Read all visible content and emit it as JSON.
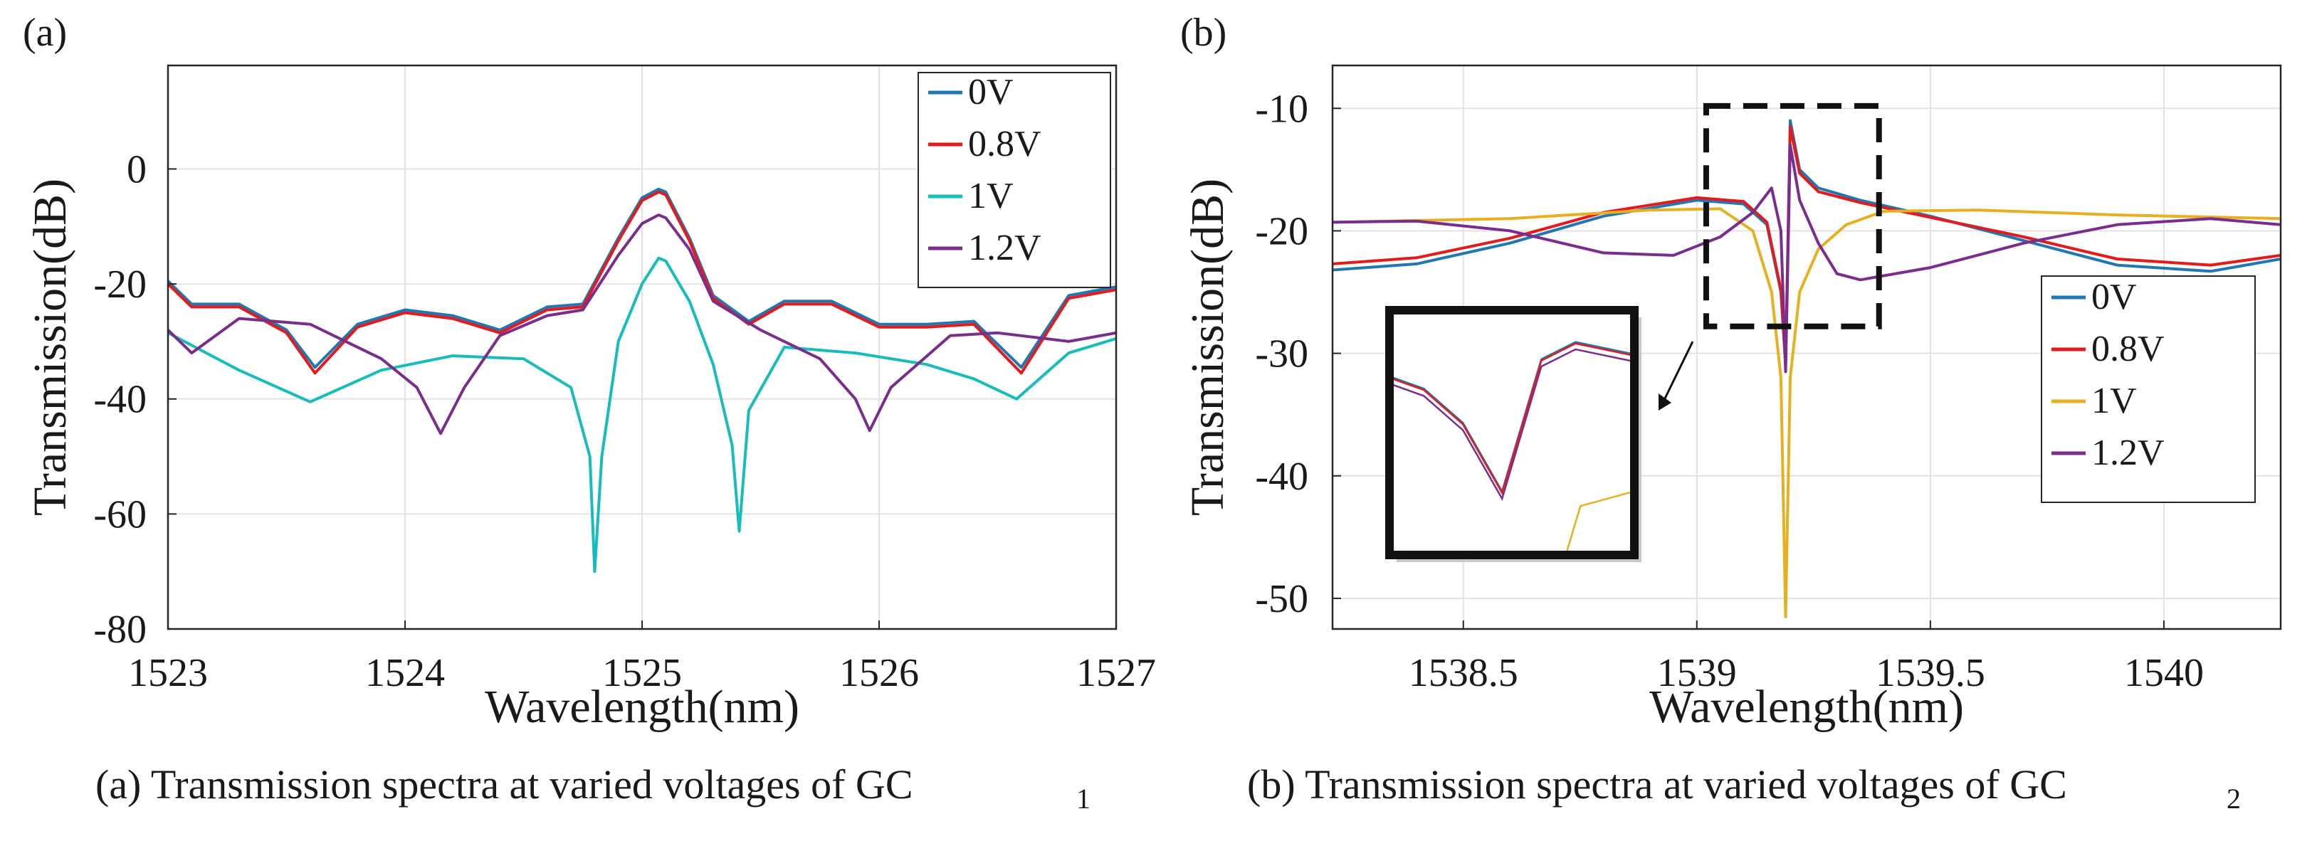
{
  "chart_data": [
    {
      "type": "line",
      "panel_label": "(a)",
      "caption": "(a) Transmission spectra at varied voltages of GC",
      "caption_subscript": "1",
      "xlabel": "Wavelength(nm)",
      "ylabel": "Transmission(dB)",
      "xlim": [
        1523,
        1527
      ],
      "ylim": [
        -80,
        18
      ],
      "xticks": [
        1523,
        1524,
        1525,
        1526,
        1527
      ],
      "xtick_labels": [
        "1523",
        "1524",
        "1525",
        "1526",
        "1527"
      ],
      "yticks": [
        -80,
        -60,
        -40,
        -20,
        0
      ],
      "ytick_labels": [
        "-80",
        "-60",
        "-40",
        "-20",
        "0"
      ],
      "grid": true,
      "legend_position": "top-right",
      "series": [
        {
          "name": "0V",
          "color": "#1f77b4",
          "x": [
            1523.0,
            1523.1,
            1523.3,
            1523.5,
            1523.62,
            1523.8,
            1524.0,
            1524.2,
            1524.4,
            1524.6,
            1524.75,
            1524.9,
            1525.0,
            1525.07,
            1525.1,
            1525.2,
            1525.3,
            1525.45,
            1525.6,
            1525.8,
            1526.0,
            1526.2,
            1526.4,
            1526.6,
            1526.8,
            1527.0
          ],
          "y": [
            -19.5,
            -23.5,
            -23.5,
            -28,
            -34.5,
            -27,
            -24.5,
            -25.5,
            -28,
            -24,
            -23.5,
            -12,
            -5,
            -3.5,
            -4,
            -12,
            -22,
            -26.5,
            -23,
            -23,
            -27,
            -27,
            -26.5,
            -34.5,
            -22,
            -20.5
          ]
        },
        {
          "name": "0.8V",
          "color": "#e41a1c",
          "x": [
            1523.0,
            1523.1,
            1523.3,
            1523.5,
            1523.62,
            1523.8,
            1524.0,
            1524.2,
            1524.4,
            1524.6,
            1524.75,
            1524.9,
            1525.0,
            1525.07,
            1525.1,
            1525.2,
            1525.3,
            1525.45,
            1525.6,
            1525.8,
            1526.0,
            1526.2,
            1526.4,
            1526.6,
            1526.8,
            1527.0
          ],
          "y": [
            -20,
            -24,
            -24,
            -28.5,
            -35.5,
            -27.5,
            -25,
            -26,
            -28.5,
            -24.5,
            -24,
            -12.5,
            -5.5,
            -4,
            -4.5,
            -12.5,
            -22.5,
            -27,
            -23.5,
            -23.5,
            -27.5,
            -27.5,
            -27,
            -35.5,
            -22.5,
            -21
          ]
        },
        {
          "name": "1V",
          "color": "#17bcbc",
          "x": [
            1523.0,
            1523.3,
            1523.6,
            1523.9,
            1524.2,
            1524.5,
            1524.7,
            1524.78,
            1524.8,
            1524.83,
            1524.9,
            1525.0,
            1525.07,
            1525.1,
            1525.2,
            1525.3,
            1525.38,
            1525.41,
            1525.45,
            1525.6,
            1525.9,
            1526.2,
            1526.4,
            1526.58,
            1526.8,
            1527.0
          ],
          "y": [
            -28.5,
            -35,
            -40.5,
            -35,
            -32.5,
            -33,
            -38,
            -50,
            -70,
            -50,
            -30,
            -20,
            -15.5,
            -16,
            -23,
            -34,
            -48,
            -63,
            -42,
            -31,
            -32,
            -34,
            -36.5,
            -40,
            -32,
            -29.5
          ]
        },
        {
          "name": "1.2V",
          "color": "#7b2d8e",
          "x": [
            1523.0,
            1523.1,
            1523.3,
            1523.6,
            1523.9,
            1524.05,
            1524.15,
            1524.25,
            1524.4,
            1524.6,
            1524.75,
            1524.9,
            1525.0,
            1525.07,
            1525.1,
            1525.2,
            1525.3,
            1525.5,
            1525.75,
            1525.9,
            1525.96,
            1526.05,
            1526.3,
            1526.5,
            1526.8,
            1527.0
          ],
          "y": [
            -28,
            -32,
            -26,
            -27,
            -33,
            -38,
            -46,
            -38,
            -29,
            -25.5,
            -24.5,
            -15,
            -9.5,
            -8,
            -8.5,
            -14,
            -23,
            -28,
            -33,
            -40,
            -45.5,
            -38,
            -29,
            -28.5,
            -30,
            -28.5
          ]
        }
      ]
    },
    {
      "type": "line",
      "panel_label": "(b)",
      "caption": "(b) Transmission spectra at varied voltages of GC",
      "caption_subscript": "2",
      "xlabel": "Wavelength(nm)",
      "ylabel": "Transmission(dB)",
      "xlim": [
        1538.22,
        1540.25
      ],
      "ylim": [
        -52.5,
        -6.5
      ],
      "xticks": [
        1538.5,
        1539,
        1539.5,
        1540
      ],
      "xtick_labels": [
        "1538.5",
        "1539",
        "1539.5",
        "1540"
      ],
      "yticks": [
        -50,
        -40,
        -30,
        -20,
        -10
      ],
      "ytick_labels": [
        "-50",
        "-40",
        "-30",
        "-20",
        "-10"
      ],
      "grid": true,
      "legend_position": "right",
      "annotation": "dashed zoom box around the resonance near 1539.2 nm with an arrow to an inset magnification",
      "series": [
        {
          "name": "0V",
          "color": "#1f77b4",
          "x": [
            1538.22,
            1538.4,
            1538.6,
            1538.8,
            1539.0,
            1539.1,
            1539.15,
            1539.18,
            1539.19,
            1539.2,
            1539.22,
            1539.26,
            1539.35,
            1539.5,
            1539.7,
            1539.9,
            1540.1,
            1540.25
          ],
          "y": [
            -23.2,
            -22.7,
            -21.0,
            -18.8,
            -17.5,
            -17.8,
            -19.5,
            -25,
            -31,
            -11,
            -15,
            -16.5,
            -17.5,
            -18.8,
            -20.8,
            -22.8,
            -23.3,
            -22.3
          ]
        },
        {
          "name": "0.8V",
          "color": "#e41a1c",
          "x": [
            1538.22,
            1538.4,
            1538.6,
            1538.8,
            1539.0,
            1539.1,
            1539.15,
            1539.18,
            1539.19,
            1539.2,
            1539.22,
            1539.26,
            1539.35,
            1539.5,
            1539.7,
            1539.9,
            1540.1,
            1540.25
          ],
          "y": [
            -22.7,
            -22.2,
            -20.6,
            -18.5,
            -17.3,
            -17.6,
            -19.3,
            -24.8,
            -30.8,
            -11.5,
            -15.3,
            -16.8,
            -17.7,
            -18.9,
            -20.5,
            -22.3,
            -22.8,
            -22.0
          ]
        },
        {
          "name": "1V",
          "color": "#e8b020",
          "x": [
            1538.22,
            1538.6,
            1538.9,
            1539.05,
            1539.12,
            1539.16,
            1539.18,
            1539.19,
            1539.2,
            1539.22,
            1539.26,
            1539.32,
            1539.4,
            1539.6,
            1539.9,
            1540.25
          ],
          "y": [
            -19.3,
            -19.0,
            -18.3,
            -18.2,
            -20,
            -25,
            -32,
            -51.5,
            -32,
            -25,
            -21.5,
            -19.5,
            -18.4,
            -18.3,
            -18.7,
            -19.0
          ]
        },
        {
          "name": "1.2V",
          "color": "#7b2d8e",
          "x": [
            1538.22,
            1538.4,
            1538.6,
            1538.8,
            1538.95,
            1539.05,
            1539.12,
            1539.16,
            1539.18,
            1539.19,
            1539.2,
            1539.22,
            1539.26,
            1539.3,
            1539.35,
            1539.5,
            1539.7,
            1539.9,
            1540.1,
            1540.25
          ],
          "y": [
            -19.3,
            -19.2,
            -20.0,
            -21.8,
            -22.0,
            -20.5,
            -18.5,
            -16.5,
            -20,
            -31.5,
            -13,
            -17.5,
            -21,
            -23.5,
            -24.0,
            -23.0,
            -21.0,
            -19.5,
            -19.0,
            -19.5
          ]
        }
      ]
    }
  ]
}
